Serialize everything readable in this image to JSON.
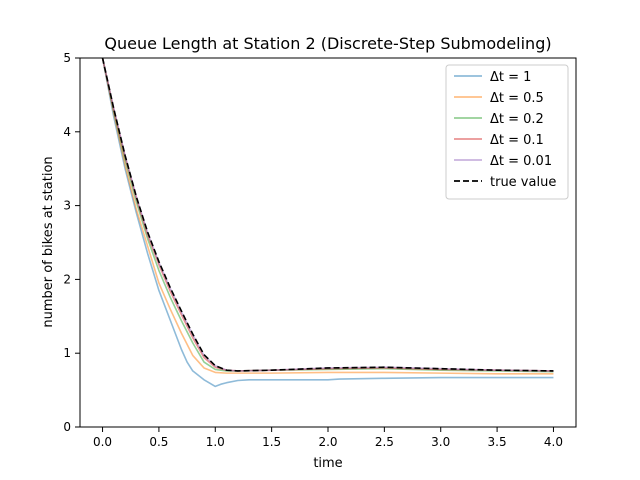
{
  "chart_data": {
    "type": "line",
    "title": "Queue Length at Station 2 (Discrete-Step Submodeling)",
    "xlabel": "time",
    "ylabel": "number of bikes at station",
    "xlim": [
      -0.2,
      4.2
    ],
    "ylim": [
      0,
      5
    ],
    "xticks": [
      "0.0",
      "0.5",
      "1.0",
      "1.5",
      "2.0",
      "2.5",
      "3.0",
      "3.5",
      "4.0"
    ],
    "yticks": [
      "0",
      "1",
      "2",
      "3",
      "4",
      "5"
    ],
    "grid": false,
    "legend_position": "top-right",
    "series": [
      {
        "name": "Δt = 1",
        "color": "#1f77b4",
        "opacity": 0.5,
        "dash": "solid",
        "x": [
          0,
          0.1,
          0.2,
          0.3,
          0.4,
          0.5,
          0.6,
          0.7,
          0.75,
          0.8,
          0.9,
          1.0,
          1.05,
          1.1,
          1.2,
          1.3,
          1.5,
          2.0,
          2.1,
          2.5,
          3.0,
          3.5,
          4.0
        ],
        "y": [
          5.0,
          4.2,
          3.5,
          2.9,
          2.35,
          1.85,
          1.45,
          1.05,
          0.88,
          0.76,
          0.64,
          0.55,
          0.58,
          0.6,
          0.63,
          0.64,
          0.64,
          0.64,
          0.65,
          0.66,
          0.67,
          0.67,
          0.67
        ]
      },
      {
        "name": "Δt = 0.5",
        "color": "#ff7f0e",
        "opacity": 0.5,
        "dash": "solid",
        "x": [
          0,
          0.1,
          0.2,
          0.3,
          0.4,
          0.5,
          0.6,
          0.7,
          0.8,
          0.9,
          1.0,
          1.1,
          1.5,
          2.0,
          2.5,
          3.0,
          3.5,
          4.0
        ],
        "y": [
          5.0,
          4.25,
          3.55,
          2.95,
          2.45,
          1.95,
          1.6,
          1.27,
          0.97,
          0.8,
          0.74,
          0.73,
          0.73,
          0.74,
          0.74,
          0.73,
          0.72,
          0.72
        ]
      },
      {
        "name": "Δt = 0.2",
        "color": "#2ca02c",
        "opacity": 0.5,
        "dash": "solid",
        "x": [
          0,
          0.1,
          0.2,
          0.3,
          0.4,
          0.5,
          0.6,
          0.7,
          0.8,
          0.9,
          1.0,
          1.1,
          1.2,
          1.5,
          2.0,
          2.5,
          3.0,
          3.5,
          4.0
        ],
        "y": [
          5.0,
          4.28,
          3.62,
          3.05,
          2.55,
          2.12,
          1.76,
          1.44,
          1.14,
          0.88,
          0.78,
          0.76,
          0.76,
          0.77,
          0.78,
          0.79,
          0.77,
          0.76,
          0.75
        ]
      },
      {
        "name": "Δt = 0.1",
        "color": "#d62728",
        "opacity": 0.5,
        "dash": "solid",
        "x": [
          0,
          0.1,
          0.2,
          0.3,
          0.4,
          0.5,
          0.6,
          0.7,
          0.8,
          0.9,
          1.0,
          1.1,
          1.2,
          1.5,
          2.0,
          2.5,
          3.0,
          3.5,
          4.0
        ],
        "y": [
          5.0,
          4.3,
          3.66,
          3.1,
          2.6,
          2.2,
          1.84,
          1.52,
          1.21,
          0.94,
          0.81,
          0.77,
          0.76,
          0.77,
          0.79,
          0.8,
          0.78,
          0.77,
          0.76
        ]
      },
      {
        "name": "Δt = 0.01",
        "color": "#9467bd",
        "opacity": 0.5,
        "dash": "solid",
        "x": [
          0,
          0.1,
          0.2,
          0.3,
          0.4,
          0.5,
          0.6,
          0.7,
          0.8,
          0.9,
          1.0,
          1.1,
          1.2,
          1.5,
          2.0,
          2.5,
          3.0,
          3.5,
          4.0
        ],
        "y": [
          5.0,
          4.31,
          3.68,
          3.12,
          2.63,
          2.23,
          1.88,
          1.56,
          1.25,
          0.97,
          0.83,
          0.77,
          0.76,
          0.77,
          0.8,
          0.81,
          0.79,
          0.77,
          0.76
        ]
      },
      {
        "name": "true value",
        "color": "#000000",
        "opacity": 1,
        "dash": "dashed",
        "x": [
          0,
          0.1,
          0.2,
          0.3,
          0.4,
          0.5,
          0.6,
          0.7,
          0.8,
          0.9,
          1.0,
          1.1,
          1.2,
          1.5,
          2.0,
          2.5,
          3.0,
          3.5,
          4.0
        ],
        "y": [
          5.0,
          4.31,
          3.68,
          3.12,
          2.64,
          2.24,
          1.89,
          1.57,
          1.26,
          0.98,
          0.83,
          0.77,
          0.76,
          0.77,
          0.8,
          0.81,
          0.79,
          0.77,
          0.76
        ]
      }
    ]
  }
}
